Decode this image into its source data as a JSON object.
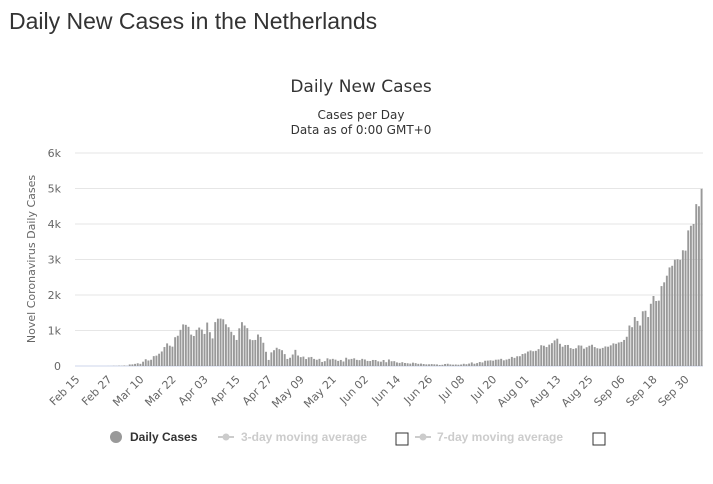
{
  "page": {
    "title": "Daily New Cases in the Netherlands"
  },
  "colors": {
    "bar": "#999999",
    "grid": "#e6e6e6",
    "legend_inactive": "#cccccc"
  },
  "chart_data": {
    "type": "bar",
    "title": "Daily New Cases",
    "subtitle_line1": "Cases per Day",
    "subtitle_line2": "Data as of 0:00 GMT+0",
    "xlabel": "",
    "ylabel": "Novel Coronavirus Daily Cases",
    "ylim": [
      0,
      6000
    ],
    "y_ticks": [
      "0",
      "1k",
      "2k",
      "3k",
      "4k",
      "5k",
      "6k"
    ],
    "y_tick_values": [
      0,
      1000,
      2000,
      3000,
      4000,
      5000,
      6000
    ],
    "x_tick_labels": [
      "Feb 15",
      "Feb 27",
      "Mar 10",
      "Mar 22",
      "Apr 03",
      "Apr 15",
      "Apr 27",
      "May 09",
      "May 21",
      "Jun 02",
      "Jun 14",
      "Jun 26",
      "Jul 08",
      "Jul 20",
      "Aug 01",
      "Aug 13",
      "Aug 25",
      "Sep 06",
      "Sep 18",
      "Sep 30"
    ],
    "x_tick_every_days": 12,
    "start_date": "Feb 15",
    "grid": true,
    "legend_position": "bottom-center",
    "legend": [
      {
        "label": "Daily Cases",
        "active": true
      },
      {
        "label": "3-day moving average",
        "active": false
      },
      {
        "label": "7-day moving average",
        "active": false
      }
    ],
    "series": [
      {
        "name": "Daily Cases",
        "values": [
          0,
          0,
          0,
          0,
          0,
          0,
          0,
          0,
          0,
          0,
          0,
          0,
          1,
          1,
          5,
          3,
          8,
          6,
          14,
          5,
          44,
          46,
          60,
          77,
          61,
          121,
          190,
          155,
          176,
          278,
          292,
          346,
          409,
          534,
          637,
          573,
          545,
          811,
          852,
          1019,
          1172,
          1159,
          1104,
          884,
          845,
          1019,
          1083,
          1026,
          904,
          1224,
          952,
          777,
          1236,
          1333,
          1335,
          1316,
          1174,
          1092,
          964,
          868,
          734,
          1061,
          1235,
          1140,
          1066,
          750,
          729,
          734,
          887,
          818,
          655,
          400,
          171,
          384,
          445,
          514,
          475,
          445,
          335,
          199,
          232,
          323,
          455,
          295,
          250,
          265,
          196,
          245,
          255,
          200,
          176,
          201,
          114,
          136,
          216,
          186,
          201,
          179,
          144,
          170,
          127,
          233,
          186,
          200,
          216,
          173,
          165,
          201,
          183,
          143,
          140,
          170,
          169,
          131,
          121,
          169,
          107,
          184,
          134,
          136,
          101,
          88,
          107,
          85,
          78,
          67,
          94,
          80,
          61,
          68,
          56,
          46,
          48,
          54,
          48,
          44,
          30,
          35,
          57,
          63,
          45,
          38,
          42,
          36,
          42,
          62,
          50,
          68,
          101,
          64,
          82,
          112,
          101,
          148,
          152,
          160,
          150,
          177,
          181,
          202,
          160,
          181,
          201,
          256,
          229,
          274,
          276,
          338,
          355,
          407,
          437,
          416,
          427,
          475,
          585,
          571,
          534,
          601,
          644,
          722,
          769,
          625,
          543,
          591,
          593,
          504,
          481,
          500,
          581,
          574,
          487,
          529,
          571,
          599,
          533,
          500,
          488,
          510,
          551,
          543,
          582,
          637,
          625,
          663,
          679,
          734,
          824,
          1140,
          1093,
          1379,
          1270,
          1140,
          1542,
          1557,
          1379,
          1753,
          1972,
          1831,
          1841,
          2251,
          2357,
          2544,
          2777,
          2823,
          2995,
          3006,
          2990,
          3260,
          3250,
          3820,
          3950,
          4000,
          4560,
          4500,
          4990
        ]
      }
    ]
  }
}
